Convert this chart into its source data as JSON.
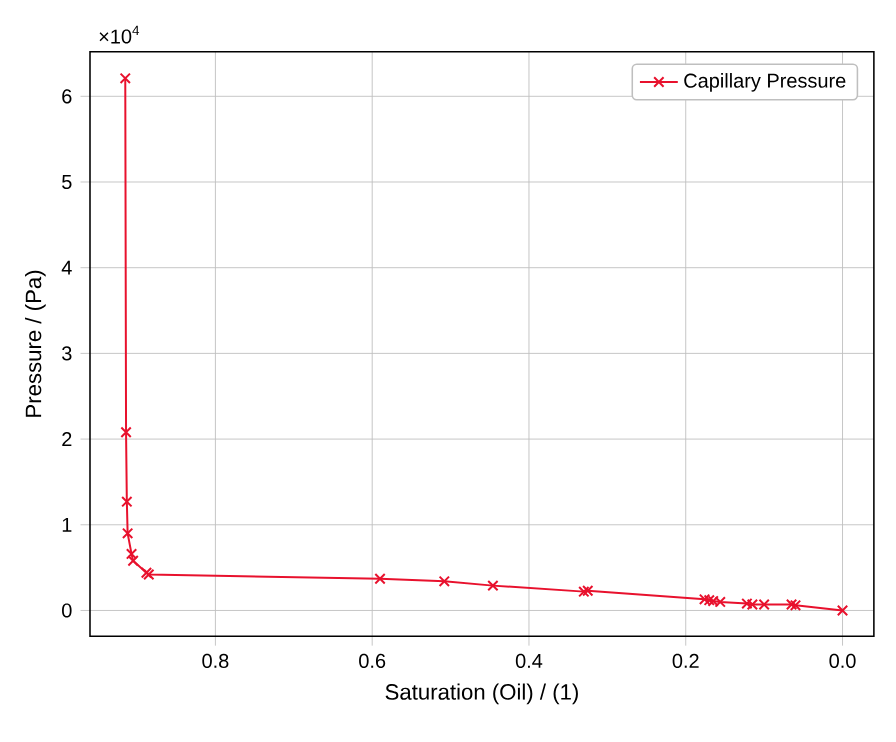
{
  "chart_data": {
    "type": "line",
    "xlabel": "Saturation (Oil) / (1)",
    "ylabel": "Pressure / (Pa)",
    "annotations": [
      "×10$^{4}$"
    ],
    "series": [
      {
        "name": "Capillary Pressure",
        "color": "#e8112d",
        "x": [
          0.915,
          0.914,
          0.913,
          0.912,
          0.907,
          0.905,
          0.888,
          0.885,
          0.59,
          0.508,
          0.446,
          0.33,
          0.325,
          0.176,
          0.17,
          0.165,
          0.156,
          0.122,
          0.115,
          0.1,
          0.065,
          0.06,
          0.0
        ],
        "values": [
          6.21,
          2.08,
          1.27,
          0.9,
          0.66,
          0.58,
          0.44,
          0.42,
          0.37,
          0.34,
          0.29,
          0.22,
          0.23,
          0.13,
          0.12,
          0.11,
          0.1,
          0.08,
          0.07,
          0.07,
          0.07,
          0.06,
          0.0
        ]
      }
    ],
    "xlim": [
      0.96,
      -0.04
    ],
    "ylim": [
      -0.3,
      6.52
    ],
    "xticks": [
      0.8,
      0.6,
      0.4,
      0.2,
      {
        "value": 0,
        "label": "0.0"
      }
    ],
    "yticks": [
      0,
      1,
      2,
      3,
      4,
      5,
      6
    ],
    "grid": true,
    "legend": "top right",
    "marker": "cross",
    "line_style": "solid"
  }
}
